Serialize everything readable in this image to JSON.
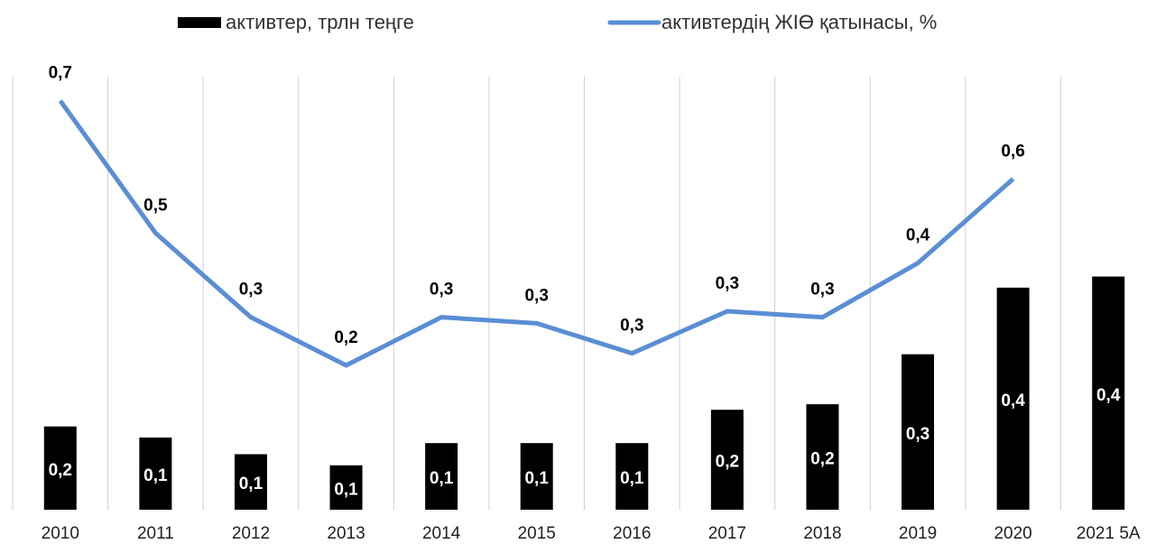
{
  "chart_data": {
    "type": "bar-line",
    "categories": [
      "2010",
      "2011",
      "2012",
      "2013",
      "2014",
      "2015",
      "2016",
      "2017",
      "2018",
      "2019",
      "2020",
      "2021 5А"
    ],
    "series": [
      {
        "name": "активтер, трлн теңге",
        "type": "bar",
        "color": "#000000",
        "values": [
          0.15,
          0.13,
          0.1,
          0.08,
          0.12,
          0.12,
          0.12,
          0.18,
          0.19,
          0.28,
          0.4,
          0.42
        ],
        "value_labels": [
          "0,2",
          "0,1",
          "0,1",
          "0,1",
          "0,1",
          "0,1",
          "0,1",
          "0,2",
          "0,2",
          "0,3",
          "0,4",
          "0,4"
        ]
      },
      {
        "name": "активтердің ЖІӨ қатынасы, %",
        "type": "line",
        "axis": "y2",
        "color": "#5a8ed4",
        "values": [
          0.68,
          0.46,
          0.32,
          0.24,
          0.32,
          0.31,
          0.26,
          0.33,
          0.32,
          0.41,
          0.55,
          null
        ],
        "value_labels": [
          "0,7",
          "0,5",
          "0,3",
          "0,2",
          "0,3",
          "0,3",
          "0,3",
          "0,3",
          "0,3",
          "0,4",
          "0,6",
          null
        ]
      }
    ],
    "ylim": [
      0,
      0.78
    ],
    "y2lim": [
      0,
      0.72
    ],
    "legend": "top"
  }
}
